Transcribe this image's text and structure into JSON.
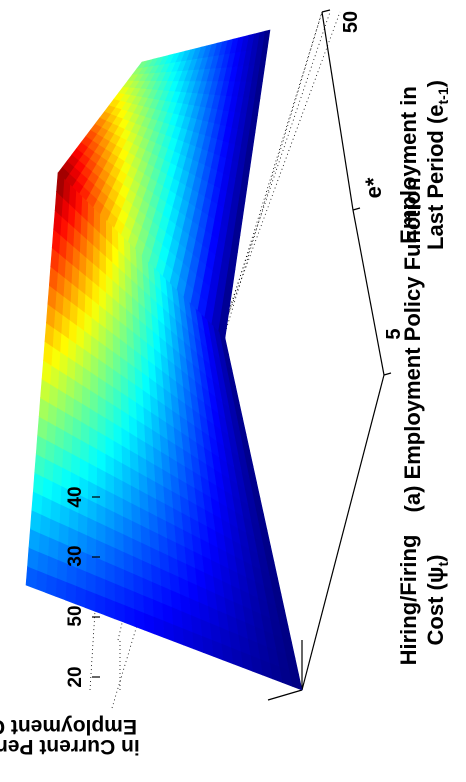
{
  "chart_data": {
    "type": "surface",
    "title": "(a) Employment Policy Function",
    "zlabel_line1": "Employment Choice",
    "zlabel_line2_prefix": "in Current Period (e",
    "zlabel_line2_sub": "t",
    "zlabel_line2_suffix": ")",
    "xlabel_line1": "Employment in",
    "xlabel_line2_prefix": "Last Period (e",
    "xlabel_line2_sub": "t-1",
    "xlabel_line2_suffix": ")",
    "ylabel_line1": "Hiring/Firing",
    "ylabel_line2_prefix": "Cost (ψ",
    "ylabel_line2_sub": "t",
    "ylabel_line2_suffix": ")",
    "x_ticks": [
      "5",
      "50"
    ],
    "x_ticks_values": [
      5,
      50
    ],
    "x_marker_label": "e*",
    "x_marker_value": 35,
    "z_ticks": [
      "20",
      "30",
      "40",
      "50"
    ],
    "z_ticks_values": [
      20,
      30,
      40,
      50
    ],
    "xlim": [
      0,
      50
    ],
    "ylim": [
      0,
      1
    ],
    "zlim": [
      18,
      56
    ],
    "colormap": "jet",
    "grid": true,
    "surface_corners": {
      "e_prev_low_cost_low": 20,
      "e_prev_low_cost_high": 27,
      "e_peak_cost_low": 20,
      "e_peak_cost_high": 55,
      "e_prev_high_cost_low": 20,
      "e_prev_high_cost_high": 37
    }
  }
}
